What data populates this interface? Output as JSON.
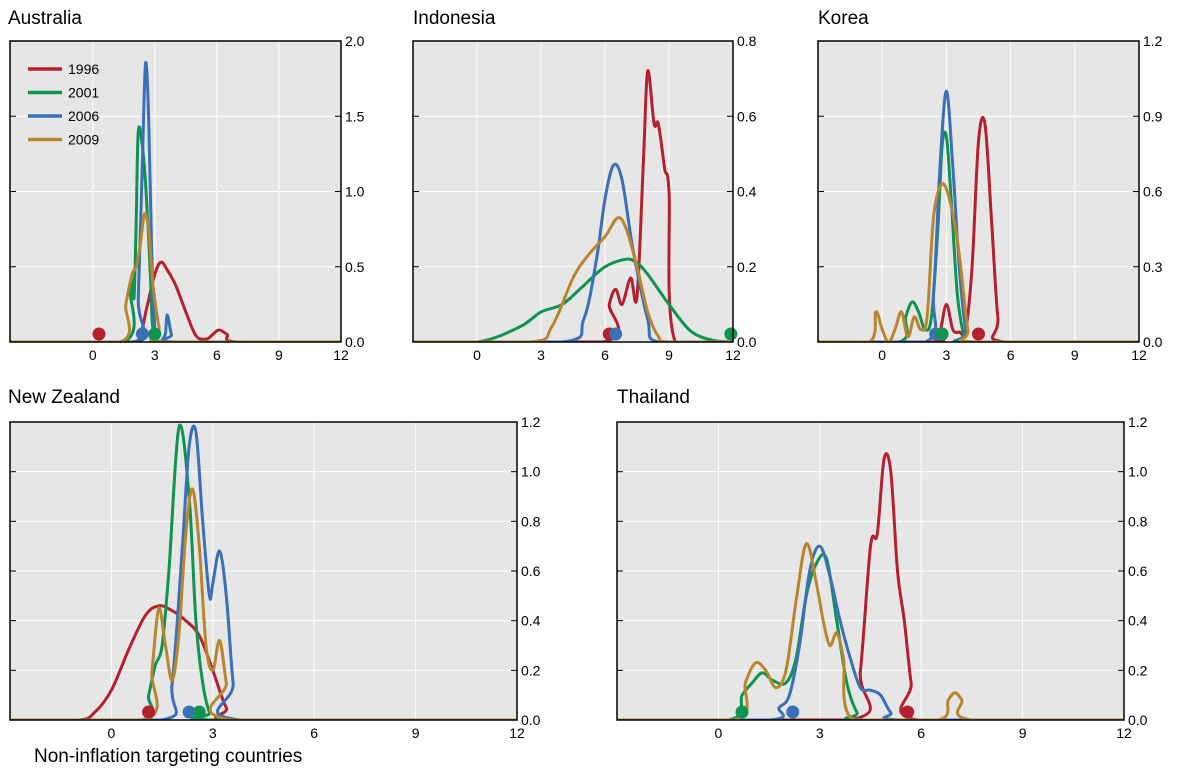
{
  "footer_note": "Non-inflation targeting countries",
  "colors": {
    "1996": "#b5202f",
    "2001": "#0f9450",
    "2006": "#3a70b8",
    "2009": "#b8862e",
    "panel_bg": "#e6e6e6",
    "grid": "#ffffff"
  },
  "legend": {
    "placement": "top-left of Australia panel",
    "entries": [
      "1996",
      "2001",
      "2006",
      "2009"
    ]
  },
  "chart_data": [
    {
      "type": "line",
      "title": "Australia",
      "xlim": [
        -4,
        12
      ],
      "ylim": [
        0,
        2.0
      ],
      "xticks": [
        0,
        3,
        6,
        9,
        12
      ],
      "xtick_labels": [
        "0",
        "3",
        "6",
        "9",
        "12"
      ],
      "yticks": [
        0,
        0.5,
        1.0,
        1.5,
        2.0
      ],
      "ytick_labels": [
        "0.0",
        "0.5",
        "1.0",
        "1.5",
        "2.0"
      ],
      "series": [
        {
          "name": "1996",
          "x": [
            -4,
            1.8,
            2.3,
            2.6,
            3.0,
            3.3,
            3.6,
            4.0,
            4.5,
            5.0,
            5.5,
            5.8,
            6.1,
            6.5,
            7.0,
            12
          ],
          "y": [
            0,
            0,
            0.05,
            0.22,
            0.45,
            0.53,
            0.48,
            0.38,
            0.2,
            0.04,
            0.02,
            0.05,
            0.08,
            0.05,
            0,
            0
          ]
        },
        {
          "name": "2001",
          "x": [
            -4,
            1.5,
            1.8,
            1.9,
            2.0,
            2.1,
            2.2,
            2.4,
            2.6,
            2.8,
            2.9,
            3.2,
            3.5,
            12
          ],
          "y": [
            0,
            0,
            0.35,
            0.42,
            0.3,
            0.8,
            1.4,
            1.3,
            0.95,
            0.4,
            0.1,
            0,
            0,
            0
          ]
        },
        {
          "name": "2006",
          "x": [
            -4,
            2.0,
            2.2,
            2.4,
            2.55,
            2.7,
            2.85,
            3.0,
            3.2,
            3.5,
            3.6,
            3.8,
            4.0,
            12
          ],
          "y": [
            0,
            0,
            0.3,
            1.2,
            1.85,
            1.5,
            0.6,
            0.1,
            0,
            0.05,
            0.18,
            0.05,
            0,
            0
          ]
        },
        {
          "name": "2009",
          "x": [
            -4,
            1.3,
            1.6,
            1.9,
            2.1,
            2.3,
            2.5,
            2.7,
            2.9,
            3.2,
            3.5,
            12
          ],
          "y": [
            0,
            0,
            0.25,
            0.45,
            0.5,
            0.65,
            0.85,
            0.75,
            0.4,
            0.1,
            0,
            0
          ]
        }
      ],
      "medians": [
        {
          "series": "1996",
          "x": 0.3
        },
        {
          "series": "2001",
          "x": 3.0
        },
        {
          "series": "2006",
          "x": 2.4
        }
      ]
    },
    {
      "type": "line",
      "title": "Indonesia",
      "xlim": [
        -3,
        12
      ],
      "ylim": [
        0,
        0.8
      ],
      "xticks": [
        0,
        3,
        6,
        9,
        12
      ],
      "xtick_labels": [
        "0",
        "3",
        "6",
        "9",
        "12"
      ],
      "yticks": [
        0,
        0.2,
        0.4,
        0.6,
        0.8
      ],
      "ytick_labels": [
        "0.0",
        "0.2",
        "0.4",
        "0.6",
        "0.8"
      ],
      "series": [
        {
          "name": "1996",
          "x": [
            -3,
            5.9,
            6.2,
            6.5,
            6.8,
            7.2,
            7.5,
            7.8,
            8.0,
            8.3,
            8.5,
            8.8,
            9.0,
            9.3,
            12
          ],
          "y": [
            0,
            0,
            0.1,
            0.14,
            0.1,
            0.17,
            0.12,
            0.48,
            0.72,
            0.58,
            0.58,
            0.46,
            0.4,
            0,
            0
          ]
        },
        {
          "name": "2001",
          "x": [
            -3,
            0,
            2,
            3,
            4,
            5,
            6,
            7,
            7.5,
            8,
            9,
            10,
            11,
            12
          ],
          "y": [
            0,
            0,
            0.04,
            0.08,
            0.1,
            0.15,
            0.2,
            0.22,
            0.21,
            0.18,
            0.1,
            0.03,
            0.005,
            0
          ]
        },
        {
          "name": "2006",
          "x": [
            -3,
            4.0,
            5.0,
            5.6,
            6.0,
            6.4,
            6.8,
            7.3,
            8.0,
            8.5,
            12
          ],
          "y": [
            0,
            0,
            0.06,
            0.22,
            0.38,
            0.47,
            0.43,
            0.25,
            0.06,
            0,
            0
          ]
        },
        {
          "name": "2009",
          "x": [
            -3,
            2.5,
            3.5,
            4.5,
            5.2,
            6.0,
            6.6,
            7.0,
            7.5,
            8.0,
            8.5,
            9.0,
            12
          ],
          "y": [
            0,
            0,
            0.04,
            0.17,
            0.23,
            0.28,
            0.33,
            0.3,
            0.2,
            0.08,
            0.015,
            0,
            0
          ]
        }
      ],
      "medians": [
        {
          "series": "1996",
          "x": 6.2
        },
        {
          "series": "2006",
          "x": 6.5
        },
        {
          "series": "2001",
          "x": 11.9
        }
      ]
    },
    {
      "type": "line",
      "title": "Korea",
      "xlim": [
        -3,
        12
      ],
      "ylim": [
        0,
        1.2
      ],
      "xticks": [
        0,
        3,
        6,
        9,
        12
      ],
      "xtick_labels": [
        "0",
        "3",
        "6",
        "9",
        "12"
      ],
      "yticks": [
        0,
        0.3,
        0.6,
        0.9,
        1.2
      ],
      "ytick_labels": [
        "0.0",
        "0.3",
        "0.6",
        "0.9",
        "1.2"
      ],
      "series": [
        {
          "name": "1996",
          "x": [
            -3,
            2.4,
            2.7,
            3.0,
            3.3,
            3.6,
            3.9,
            4.2,
            4.5,
            4.8,
            5.1,
            5.4,
            5.7,
            12
          ],
          "y": [
            0,
            0,
            0.04,
            0.15,
            0.05,
            0.04,
            0.05,
            0.3,
            0.8,
            0.87,
            0.5,
            0.1,
            0,
            0
          ]
        },
        {
          "name": "2001",
          "x": [
            -3,
            0.8,
            1.1,
            1.4,
            1.7,
            2.0,
            2.3,
            2.6,
            2.8,
            3.0,
            3.2,
            3.5,
            3.8,
            4.0,
            12
          ],
          "y": [
            0,
            0,
            0.1,
            0.16,
            0.12,
            0.05,
            0.1,
            0.45,
            0.78,
            0.82,
            0.6,
            0.2,
            0.03,
            0,
            0
          ]
        },
        {
          "name": "2006",
          "x": [
            -3,
            2.0,
            2.4,
            2.7,
            3.0,
            3.3,
            3.6,
            3.9,
            4.2,
            12
          ],
          "y": [
            0,
            0,
            0.2,
            0.7,
            1.0,
            0.7,
            0.3,
            0.05,
            0,
            0
          ]
        },
        {
          "name": "2009",
          "x": [
            -3,
            -0.6,
            -0.3,
            0,
            0.3,
            0.6,
            0.9,
            1.2,
            1.5,
            1.8,
            2.1,
            2.4,
            2.8,
            3.2,
            3.6,
            4.0,
            4.3,
            12
          ],
          "y": [
            0,
            0,
            0.12,
            0.05,
            0,
            0.05,
            0.12,
            0.02,
            0.1,
            0.05,
            0.1,
            0.5,
            0.63,
            0.55,
            0.35,
            0.05,
            0,
            0
          ]
        }
      ],
      "medians": [
        {
          "series": "2006",
          "x": 2.5
        },
        {
          "series": "2001",
          "x": 2.8
        },
        {
          "series": "1996",
          "x": 4.5
        }
      ]
    },
    {
      "type": "line",
      "title": "New Zealand",
      "xlim": [
        -3,
        12
      ],
      "ylim": [
        0,
        1.2
      ],
      "xticks": [
        0,
        3,
        6,
        9,
        12
      ],
      "xtick_labels": [
        "0",
        "3",
        "6",
        "9",
        "12"
      ],
      "yticks": [
        0,
        0.2,
        0.4,
        0.6,
        0.8,
        1.0,
        1.2
      ],
      "ytick_labels": [
        "0.0",
        "0.2",
        "0.4",
        "0.6",
        "0.8",
        "1.0",
        "1.2"
      ],
      "series": [
        {
          "name": "1996",
          "x": [
            -3,
            -1.0,
            -0.5,
            0,
            0.5,
            1.0,
            1.4,
            1.8,
            2.2,
            2.6,
            3.0,
            3.4,
            3.8,
            12
          ],
          "y": [
            0,
            0,
            0.03,
            0.12,
            0.28,
            0.42,
            0.46,
            0.44,
            0.4,
            0.34,
            0.2,
            0.05,
            0,
            0
          ]
        },
        {
          "name": "2001",
          "x": [
            -3,
            0.9,
            1.1,
            1.3,
            1.5,
            1.7,
            2.0,
            2.3,
            2.5,
            2.7,
            2.9,
            3.1,
            12
          ],
          "y": [
            0,
            0,
            0.1,
            0.22,
            0.3,
            0.6,
            1.18,
            0.9,
            0.4,
            0.15,
            0.03,
            0,
            0
          ]
        },
        {
          "name": "2006",
          "x": [
            -3,
            1.5,
            1.8,
            2.1,
            2.3,
            2.5,
            2.7,
            2.9,
            3.0,
            3.2,
            3.4,
            3.6,
            3.8,
            12
          ],
          "y": [
            0,
            0,
            0.15,
            0.7,
            1.1,
            1.16,
            0.8,
            0.5,
            0.55,
            0.68,
            0.5,
            0.15,
            0,
            0
          ]
        },
        {
          "name": "2009",
          "x": [
            -3,
            1.0,
            1.2,
            1.4,
            1.6,
            1.8,
            2.0,
            2.2,
            2.4,
            2.6,
            2.8,
            3.0,
            3.2,
            3.4,
            3.6,
            12
          ],
          "y": [
            0,
            0,
            0.2,
            0.45,
            0.3,
            0.16,
            0.35,
            0.75,
            0.93,
            0.7,
            0.3,
            0.2,
            0.32,
            0.15,
            0,
            0
          ]
        }
      ],
      "medians": [
        {
          "series": "1996",
          "x": 1.1
        },
        {
          "series": "2006",
          "x": 2.3
        },
        {
          "series": "2001",
          "x": 2.6
        }
      ]
    },
    {
      "type": "line",
      "title": "Thailand",
      "xlim": [
        -3,
        12
      ],
      "ylim": [
        0,
        1.2
      ],
      "xticks": [
        0,
        3,
        6,
        9,
        12
      ],
      "xtick_labels": [
        "0",
        "3",
        "6",
        "9",
        "12"
      ],
      "yticks": [
        0,
        0.2,
        0.4,
        0.6,
        0.8,
        1.0,
        1.2
      ],
      "ytick_labels": [
        "0.0",
        "0.2",
        "0.4",
        "0.6",
        "0.8",
        "1.0",
        "1.2"
      ],
      "series": [
        {
          "name": "1996",
          "x": [
            -3,
            3.9,
            4.2,
            4.5,
            4.7,
            4.9,
            5.1,
            5.3,
            5.5,
            5.7,
            5.9,
            12
          ],
          "y": [
            0,
            0,
            0.2,
            0.7,
            0.75,
            1.05,
            1.0,
            0.6,
            0.4,
            0.15,
            0,
            0
          ]
        },
        {
          "name": "2001",
          "x": [
            -3,
            0.3,
            0.7,
            1.0,
            1.3,
            1.6,
            2.0,
            2.3,
            2.6,
            2.9,
            3.2,
            3.5,
            3.8,
            4.1,
            4.4,
            12
          ],
          "y": [
            0,
            0,
            0.1,
            0.15,
            0.19,
            0.16,
            0.15,
            0.25,
            0.5,
            0.63,
            0.65,
            0.4,
            0.15,
            0.03,
            0,
            0
          ]
        },
        {
          "name": "2006",
          "x": [
            -3,
            1.5,
            1.8,
            2.1,
            2.4,
            2.7,
            3.0,
            3.3,
            3.6,
            3.9,
            4.2,
            4.5,
            4.8,
            5.1,
            5.5,
            12
          ],
          "y": [
            0,
            0,
            0.05,
            0.1,
            0.3,
            0.6,
            0.7,
            0.58,
            0.4,
            0.25,
            0.13,
            0.12,
            0.1,
            0.03,
            0,
            0
          ]
        },
        {
          "name": "2009",
          "x": [
            -3,
            0.5,
            0.8,
            1.1,
            1.4,
            1.7,
            2.0,
            2.3,
            2.6,
            2.9,
            3.1,
            3.3,
            3.5,
            3.7,
            4.0,
            6.5,
            6.8,
            7.0,
            7.2,
            7.5,
            12
          ],
          "y": [
            0,
            0,
            0.15,
            0.23,
            0.2,
            0.13,
            0.2,
            0.48,
            0.71,
            0.55,
            0.4,
            0.3,
            0.35,
            0.25,
            0,
            0,
            0.08,
            0.11,
            0.08,
            0,
            0
          ]
        }
      ],
      "medians": [
        {
          "series": "2001",
          "x": 0.7
        },
        {
          "series": "2006",
          "x": 2.2
        },
        {
          "series": "1996",
          "x": 5.6
        }
      ]
    }
  ]
}
